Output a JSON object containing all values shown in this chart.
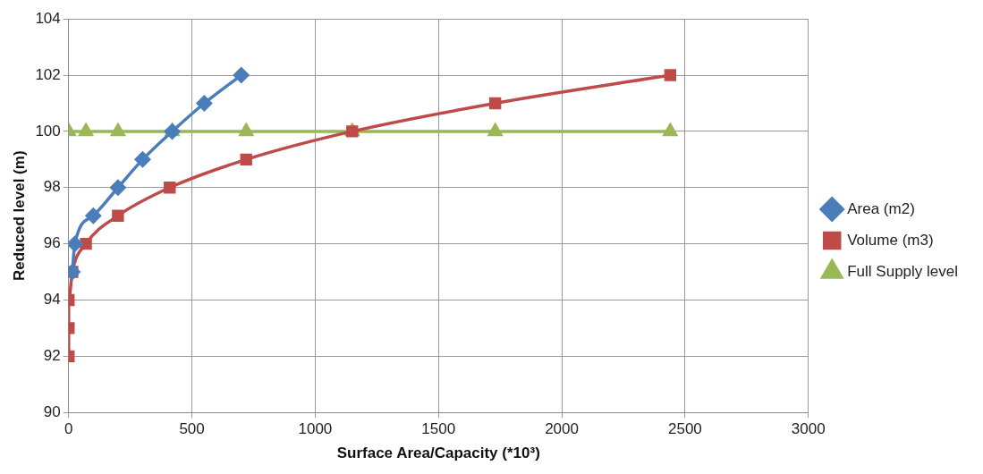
{
  "chart_data": {
    "type": "line",
    "xlabel": "Surface Area/Capacity (*10³)",
    "ylabel": "Reduced level (m)",
    "xlim": [
      0,
      3000
    ],
    "xticks": [
      0,
      500,
      1000,
      1500,
      2000,
      2500,
      3000
    ],
    "ylim": [
      90,
      104
    ],
    "yticks": [
      90,
      92,
      94,
      96,
      98,
      100,
      102,
      104
    ],
    "grid": true,
    "legend": "right",
    "series": [
      {
        "name": "Area (m2)",
        "color": "#4a7ebb",
        "marker": "diamond",
        "x": [
          15,
          25,
          100,
          200,
          300,
          420,
          550,
          700
        ],
        "values": [
          95,
          96,
          97,
          98,
          99,
          100,
          101,
          102
        ]
      },
      {
        "name": "Volume (m3)",
        "color": "#be4b48",
        "marker": "square",
        "x": [
          0,
          0,
          0,
          15,
          70,
          200,
          410,
          720,
          1150,
          1730,
          2440
        ],
        "values": [
          92,
          93,
          94,
          95,
          96,
          97,
          98,
          99,
          100,
          101,
          102
        ]
      },
      {
        "name": "Full Supply level",
        "color": "#98b954",
        "marker": "triangle",
        "x": [
          0,
          70,
          200,
          420,
          720,
          1150,
          1730,
          2440
        ],
        "values": [
          100,
          100,
          100,
          100,
          100,
          100,
          100,
          100
        ]
      }
    ]
  }
}
